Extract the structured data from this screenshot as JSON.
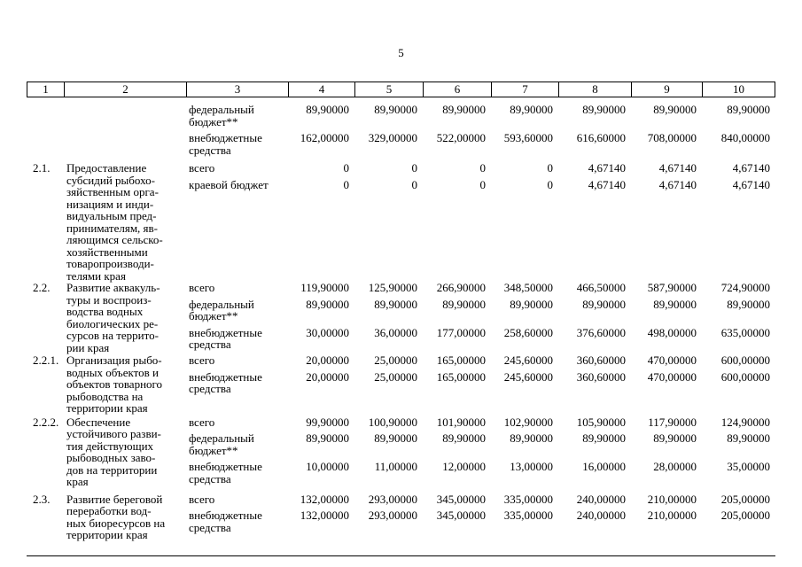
{
  "page_number": "5",
  "table": {
    "header": [
      "1",
      "2",
      "3",
      "4",
      "5",
      "6",
      "7",
      "8",
      "9",
      "10"
    ],
    "groups": [
      {
        "num": "",
        "name": "",
        "lines": [
          {
            "label": "федеральный\nбюджет**",
            "values": [
              "89,90000",
              "89,90000",
              "89,90000",
              "89,90000",
              "89,90000",
              "89,90000",
              "89,90000"
            ]
          },
          {
            "label": "внебюджетные\nсредства",
            "values": [
              "162,00000",
              "329,00000",
              "522,00000",
              "593,60000",
              "616,60000",
              "708,00000",
              "840,00000"
            ]
          }
        ]
      },
      {
        "num": "2.1.",
        "name": "Предоставление\nсубсидий рыбохо-\nзяйственным орга-\nнизациям и инди-\nвидуальным пред-\nпринимателям, яв-\nляющимся сельско-\nхозяйственными\nтоваропроизводи-\nтелями края",
        "lines": [
          {
            "label": "всего",
            "values": [
              "0",
              "0",
              "0",
              "0",
              "4,67140",
              "4,67140",
              "4,67140"
            ]
          },
          {
            "label": "краевой бюджет",
            "values": [
              "0",
              "0",
              "0",
              "0",
              "4,67140",
              "4,67140",
              "4,67140"
            ]
          }
        ]
      },
      {
        "num": "2.2.",
        "name": "Развитие аквакуль-\nтуры и воспроиз-\nводства водных\nбиологических ре-\nсурсов на террито-\nрии края",
        "lines": [
          {
            "label": "всего",
            "values": [
              "119,90000",
              "125,90000",
              "266,90000",
              "348,50000",
              "466,50000",
              "587,90000",
              "724,90000"
            ]
          },
          {
            "label": "федеральный\nбюджет**",
            "values": [
              "89,90000",
              "89,90000",
              "89,90000",
              "89,90000",
              "89,90000",
              "89,90000",
              "89,90000"
            ]
          },
          {
            "label": "внебюджетные\nсредства",
            "values": [
              "30,00000",
              "36,00000",
              "177,00000",
              "258,60000",
              "376,60000",
              "498,00000",
              "635,00000"
            ]
          }
        ]
      },
      {
        "num": "2.2.1.",
        "name": "Организация рыбо-\nводных объектов и\nобъектов товарного\nрыбоводства на\nтерритории края",
        "lines": [
          {
            "label": "всего",
            "values": [
              "20,00000",
              "25,00000",
              "165,00000",
              "245,60000",
              "360,60000",
              "470,00000",
              "600,00000"
            ]
          },
          {
            "label": "внебюджетные\nсредства",
            "values": [
              "20,00000",
              "25,00000",
              "165,00000",
              "245,60000",
              "360,60000",
              "470,00000",
              "600,00000"
            ]
          }
        ]
      },
      {
        "num": "2.2.2.",
        "name": "Обеспечение\nустойчивого разви-\nтия действующих\nрыбоводных заво-\nдов на территории\nкрая",
        "lines": [
          {
            "label": "всего",
            "values": [
              "99,90000",
              "100,90000",
              "101,90000",
              "102,90000",
              "105,90000",
              "117,90000",
              "124,90000"
            ]
          },
          {
            "label": "федеральный\nбюджет**",
            "values": [
              "89,90000",
              "89,90000",
              "89,90000",
              "89,90000",
              "89,90000",
              "89,90000",
              "89,90000"
            ]
          },
          {
            "label": "внебюджетные\nсредства",
            "values": [
              "10,00000",
              "11,00000",
              "12,00000",
              "13,00000",
              "16,00000",
              "28,00000",
              "35,00000"
            ]
          }
        ]
      },
      {
        "num": "2.3.",
        "name": "Развитие береговой\nпереработки вод-\nных биоресурсов на\nтерритории края",
        "lines": [
          {
            "label": "всего",
            "values": [
              "132,00000",
              "293,00000",
              "345,00000",
              "335,00000",
              "240,00000",
              "210,00000",
              "205,00000"
            ]
          },
          {
            "label": "внебюджетные\nсредства",
            "values": [
              "132,00000",
              "293,00000",
              "345,00000",
              "335,00000",
              "240,00000",
              "210,00000",
              "205,00000"
            ]
          }
        ]
      }
    ]
  }
}
